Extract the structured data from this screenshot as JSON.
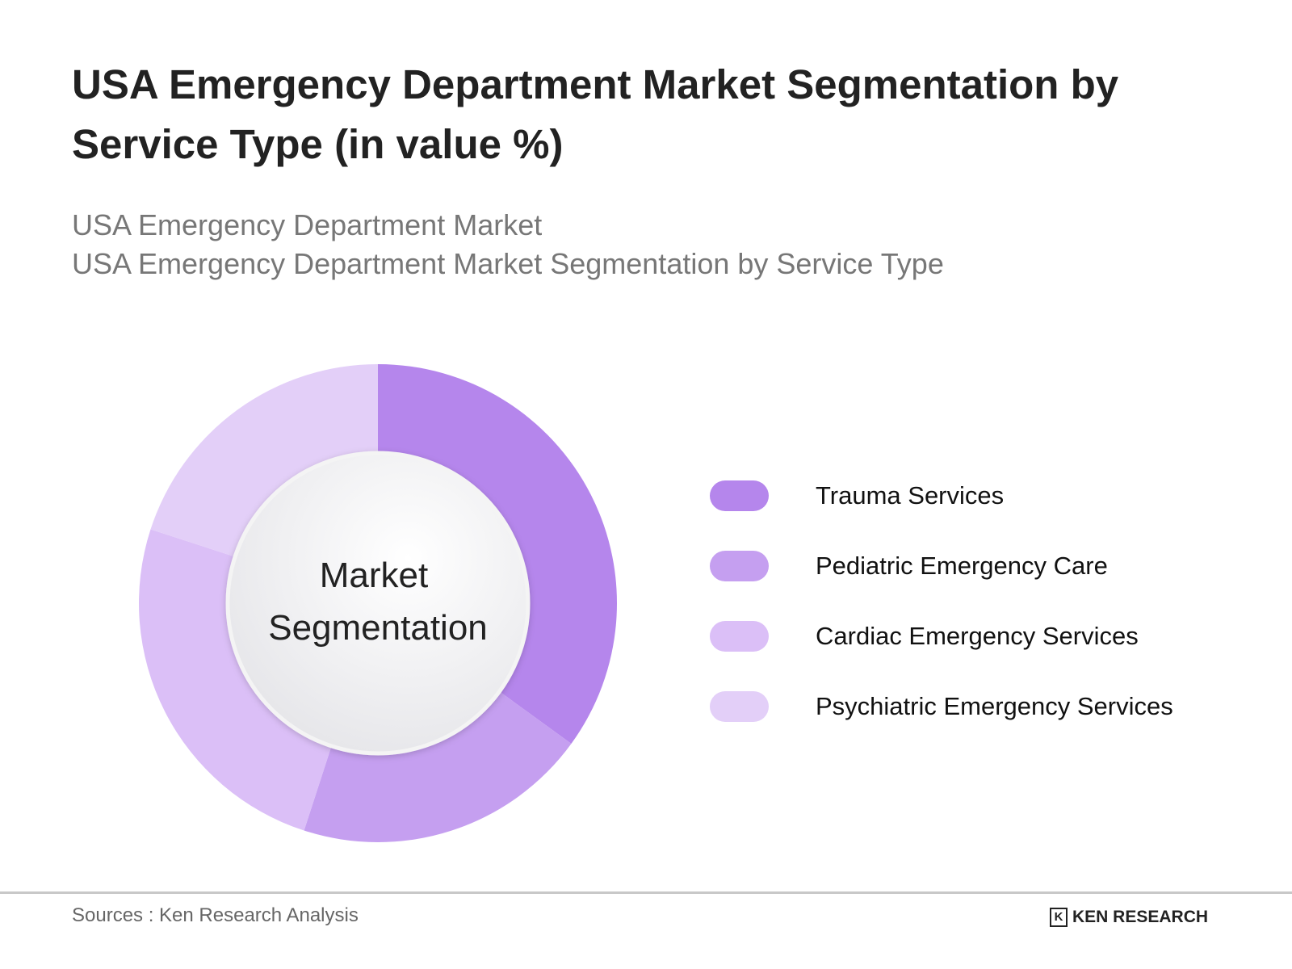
{
  "title": "USA Emergency Department Market Segmentation by Service Type (in value %)",
  "subtitle_1": "USA Emergency Department Market",
  "subtitle_2": "USA Emergency Department Market Segmentation by Service Type",
  "chart_data": {
    "type": "pie",
    "variant": "donut",
    "center_label": [
      "Market",
      "Segmentation"
    ],
    "categories": [
      "Trauma Services",
      "Pediatric Emergency Care",
      "Cardiac Emergency Services",
      "Psychiatric Emergency Services"
    ],
    "values": [
      35,
      20,
      25,
      20
    ],
    "colors": [
      "#b586ec",
      "#c59ff0",
      "#dbbff7",
      "#e3cff8"
    ],
    "legend_position": "right"
  },
  "footer": {
    "source": "Sources : Ken Research Analysis",
    "logo": "KEN RESEARCH"
  }
}
